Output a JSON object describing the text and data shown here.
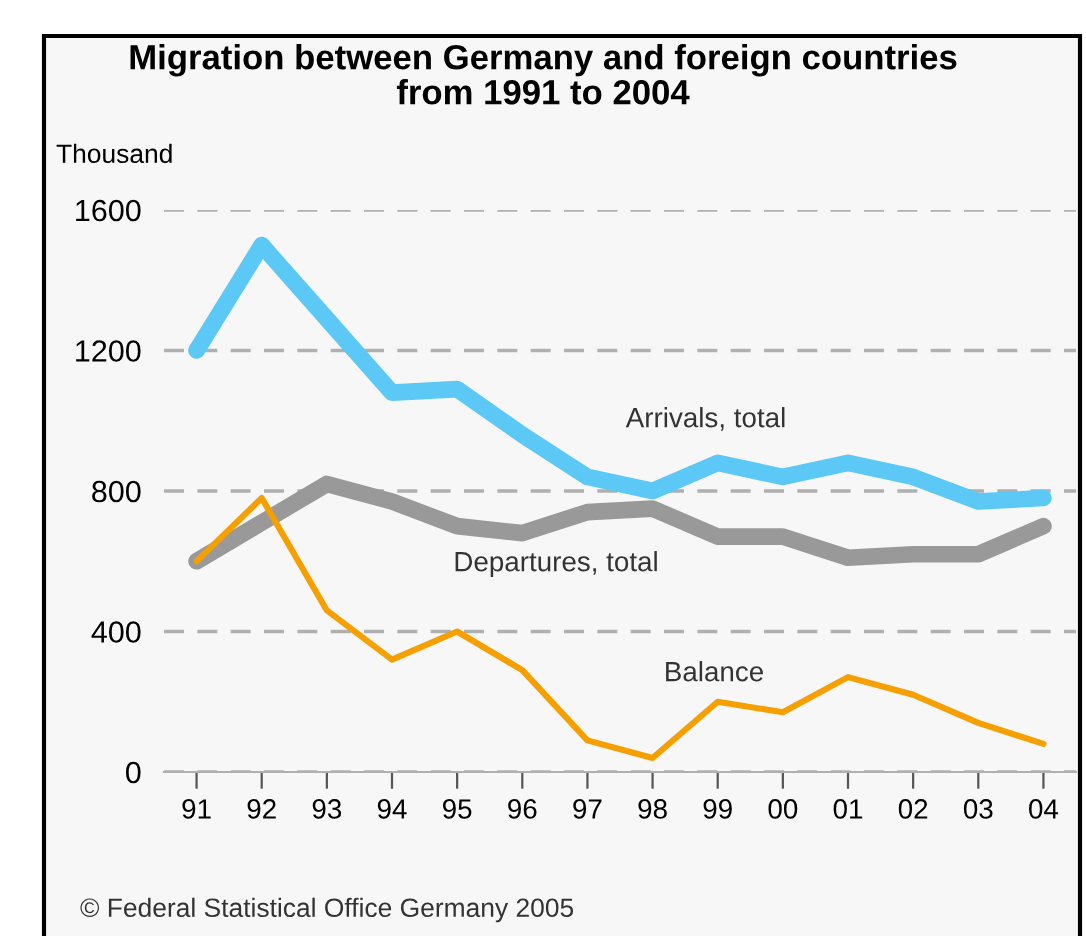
{
  "chart_data": {
    "type": "line",
    "title": "Migration between Germany and foreign countries\nfrom 1991 to 2004",
    "ylabel": "Thousand",
    "categories": [
      "91",
      "92",
      "93",
      "94",
      "95",
      "96",
      "97",
      "98",
      "99",
      "00",
      "01",
      "02",
      "03",
      "04"
    ],
    "series": [
      {
        "name": "Arrivals, total",
        "color": "#5bc8f5",
        "values": [
          1200,
          1500,
          1290,
          1080,
          1090,
          960,
          840,
          800,
          880,
          840,
          880,
          840,
          770,
          780
        ]
      },
      {
        "name": "Departures, total",
        "color": "#999999",
        "values": [
          600,
          710,
          820,
          770,
          700,
          680,
          740,
          750,
          670,
          670,
          610,
          620,
          620,
          700
        ]
      },
      {
        "name": "Balance",
        "color": "#f5a000",
        "values": [
          600,
          780,
          460,
          320,
          400,
          290,
          90,
          40,
          200,
          170,
          270,
          220,
          140,
          80
        ]
      }
    ],
    "ylim": [
      0,
      1600
    ],
    "yticks": [
      0,
      400,
      800,
      1200,
      1600
    ],
    "grid": "y",
    "line_style": "solid",
    "marker": "none",
    "annotations": [
      "© Federal Statistical Office Germany 2005"
    ]
  }
}
